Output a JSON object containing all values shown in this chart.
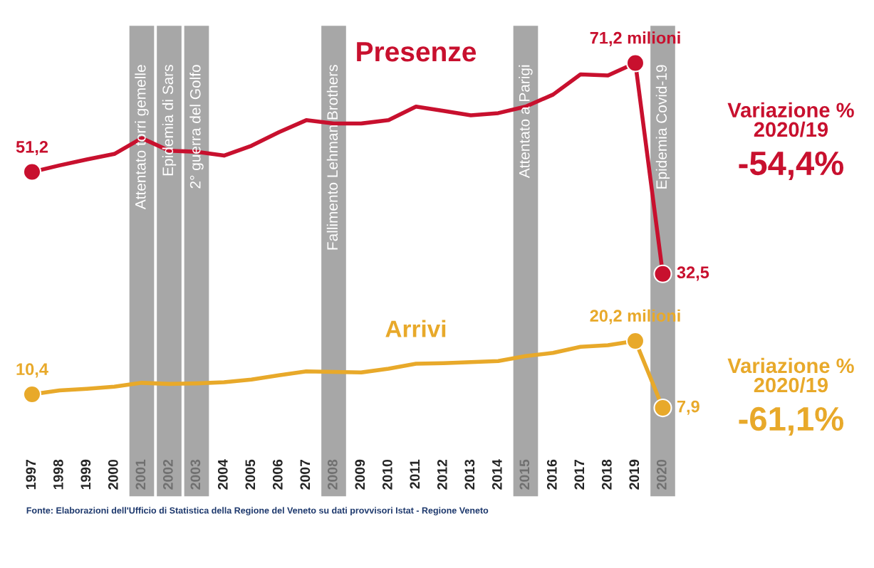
{
  "chart_data": {
    "type": "line",
    "categories": [
      "1997",
      "1998",
      "1999",
      "2000",
      "2001",
      "2002",
      "2003",
      "2004",
      "2005",
      "2006",
      "2007",
      "2008",
      "2009",
      "2010",
      "2011",
      "2012",
      "2013",
      "2014",
      "2015",
      "2016",
      "2017",
      "2018",
      "2019",
      "2020"
    ],
    "series": [
      {
        "name": "Presenze",
        "color": "#c8102e",
        "values": [
          51.2,
          52.4,
          53.5,
          54.5,
          57.4,
          55.1,
          54.9,
          54.2,
          56.0,
          58.5,
          60.7,
          60.1,
          60.1,
          60.7,
          63.2,
          62.4,
          61.6,
          62.0,
          63.2,
          65.4,
          69.1,
          68.9,
          71.2,
          32.5
        ],
        "value_labels": [
          "51,2",
          null,
          null,
          null,
          null,
          null,
          null,
          null,
          null,
          null,
          null,
          null,
          null,
          null,
          null,
          null,
          null,
          null,
          null,
          null,
          null,
          null,
          "71,2 milioni",
          "32,5"
        ]
      },
      {
        "name": "Arrivi",
        "color": "#e8a92a",
        "values": [
          10.4,
          11.1,
          11.4,
          11.8,
          12.5,
          12.3,
          12.4,
          12.6,
          13.1,
          13.9,
          14.6,
          14.5,
          14.4,
          15.1,
          16.0,
          16.1,
          16.3,
          16.5,
          17.4,
          18.0,
          19.1,
          19.4,
          20.2,
          7.9
        ],
        "value_labels": [
          "10,4",
          null,
          null,
          null,
          null,
          null,
          null,
          null,
          null,
          null,
          null,
          null,
          null,
          null,
          null,
          null,
          null,
          null,
          null,
          null,
          null,
          null,
          "20,2 milioni",
          "7,9"
        ]
      }
    ],
    "line_style": "solid",
    "grid": false,
    "legend": false,
    "tick_labels": "x",
    "bands": [
      {
        "axis": "x",
        "from": "2001",
        "to": "2001",
        "label": "Attentato torri gemelle",
        "color": "#8a8a8a"
      },
      {
        "axis": "x",
        "from": "2002",
        "to": "2002",
        "label": "Epidemia di Sars",
        "color": "#8a8a8a"
      },
      {
        "axis": "x",
        "from": "2003",
        "to": "2003",
        "label": "2° guerra del Golfo",
        "color": "#8a8a8a"
      },
      {
        "axis": "x",
        "from": "2008",
        "to": "2008",
        "label": "Fallimento Lehman Brothers",
        "color": "#8a8a8a"
      },
      {
        "axis": "x",
        "from": "2015",
        "to": "2015",
        "label": "Attentato a Parigi",
        "color": "#8a8a8a"
      },
      {
        "axis": "x",
        "from": "2020",
        "to": "2020",
        "label": "Epidemia Covid-19",
        "color": "#8a8a8a"
      }
    ],
    "annotations": [
      "Variazione %\n2020/19\n-54,4%",
      "Variazione %\n2020/19\n-61,1%",
      "Fonte: Elaborazioni dell'Ufficio di Statistica della Regione del Veneto su dati provvisori Istat - Regione Veneto"
    ]
  }
}
